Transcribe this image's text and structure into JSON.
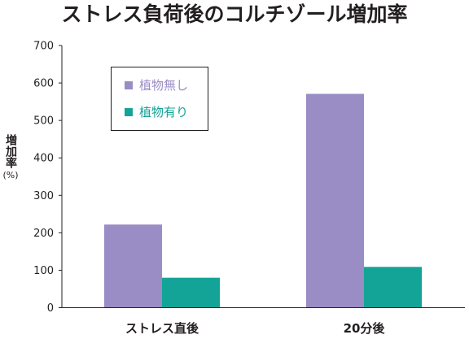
{
  "chart_data": {
    "type": "bar",
    "title": "ストレス負荷後のコルチゾール増加率",
    "ylabel": "増加率",
    "ylabel_unit": "(%)",
    "xlabel": "",
    "categories": [
      "ストレス直後",
      "20分後"
    ],
    "series": [
      {
        "name": "植物無し",
        "values": [
          222,
          571
        ],
        "color": "#9a8cc4"
      },
      {
        "name": "植物有り",
        "values": [
          80,
          109
        ],
        "color": "#13a497"
      }
    ],
    "ylim": [
      0,
      700
    ],
    "yticks": [
      0,
      100,
      200,
      300,
      400,
      500,
      600,
      700
    ],
    "grid": false,
    "legend_position": "top-left"
  }
}
